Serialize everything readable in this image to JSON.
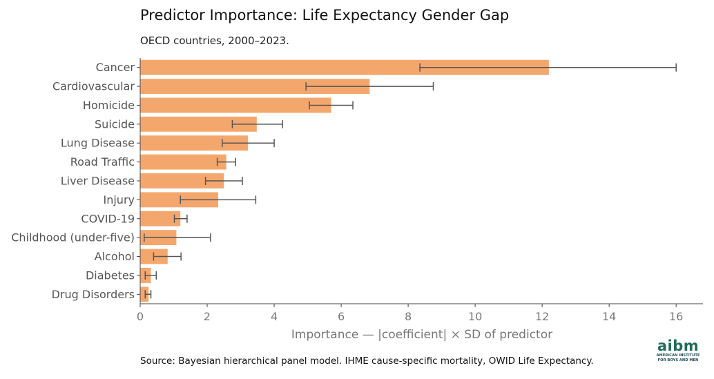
{
  "title": "Predictor Importance: Life Expectancy Gender Gap",
  "subtitle": "OECD countries, 2000–2023.",
  "source": "Source: Bayesian hierarchical panel model. IHME cause-specific mortality, OWID Life Expectancy.",
  "logo": {
    "word": "aibm",
    "line1": "AMERICAN INSTITUTE",
    "line2": "FOR BOYS AND MEN"
  },
  "colors": {
    "bar": "#f4a76d",
    "error_bar": "#555555",
    "axis": "#444444",
    "tick_label": "#777777",
    "category_label": "#555555",
    "logo": "#1f6b5a"
  },
  "chart_data": {
    "type": "bar",
    "orientation": "horizontal",
    "title": "Predictor Importance: Life Expectancy Gender Gap",
    "subtitle": "OECD countries, 2000–2023.",
    "xlabel": "Importance — |coefficient| × SD of predictor",
    "ylabel": "",
    "xlim": [
      0,
      16.8
    ],
    "xticks": [
      0,
      2,
      4,
      6,
      8,
      10,
      12,
      14,
      16
    ],
    "grid": false,
    "categories": [
      "Cancer",
      "Cardiovascular",
      "Homicide",
      "Suicide",
      "Lung Disease",
      "Road Traffic",
      "Liver Disease",
      "Injury",
      "COVID-19",
      "Childhood (under-five)",
      "Alcohol",
      "Diabetes",
      "Drug Disorders"
    ],
    "values": [
      12.2,
      6.85,
      5.7,
      3.48,
      3.22,
      2.57,
      2.5,
      2.33,
      1.2,
      1.08,
      0.82,
      0.32,
      0.25
    ],
    "error_low": [
      8.35,
      4.95,
      5.05,
      2.75,
      2.45,
      2.3,
      1.95,
      1.2,
      1.02,
      0.12,
      0.4,
      0.15,
      0.15
    ],
    "error_high": [
      16.0,
      8.75,
      6.35,
      4.25,
      4.0,
      2.85,
      3.05,
      3.45,
      1.4,
      2.1,
      1.22,
      0.48,
      0.32
    ]
  }
}
